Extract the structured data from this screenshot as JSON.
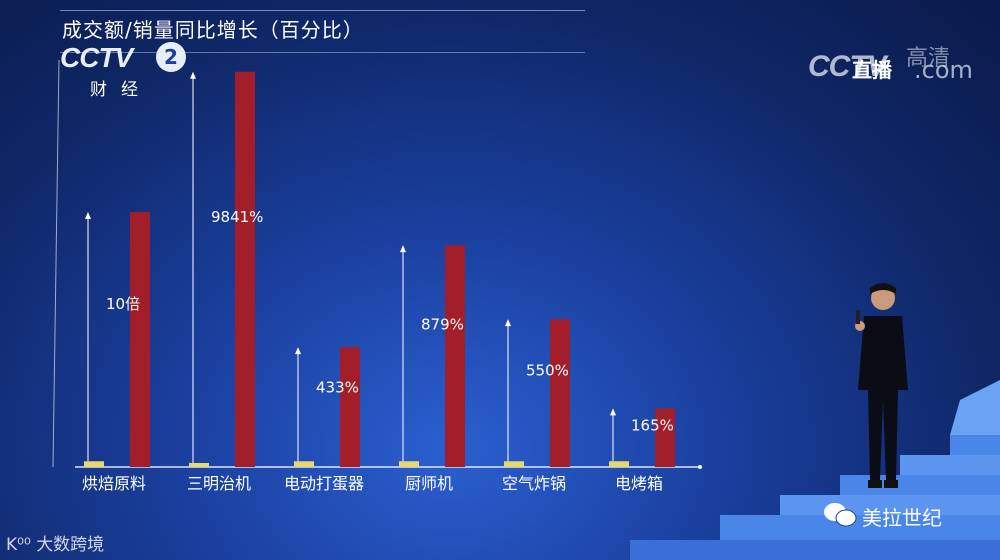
{
  "header": {
    "title": "成交额/销量同比增长（百分比）"
  },
  "logo": {
    "cctv": "CCTV",
    "channel": "2",
    "sub": "财经"
  },
  "live": {
    "cctv": "CCTV",
    "com": ".com",
    "zhibo": "直播",
    "hd": "高清"
  },
  "watermarks": {
    "left": "大数跨境",
    "right": "美拉世纪",
    "left_mark": "K⁰⁰"
  },
  "chart_data": {
    "type": "bar",
    "categories": [
      "烘焙原料",
      "三明治机",
      "电动打蛋器",
      "厨师机",
      "空气炸锅",
      "电烤箱"
    ],
    "series": [
      {
        "values": [
          0.09,
          0.02,
          0.09,
          0.09,
          0.09,
          0.09
        ],
        "color": "#e8d96a"
      },
      {
        "values": [
          1.0,
          1.55,
          0.47,
          0.87,
          0.58,
          0.23
        ],
        "color": "#a11e2a"
      }
    ],
    "labels": [
      "10倍",
      "9841%",
      "433%",
      "879%",
      "550%",
      "165%"
    ],
    "colors": {
      "bar_yellow": "#e8d96a",
      "bar_red": "#a11e2a"
    }
  }
}
